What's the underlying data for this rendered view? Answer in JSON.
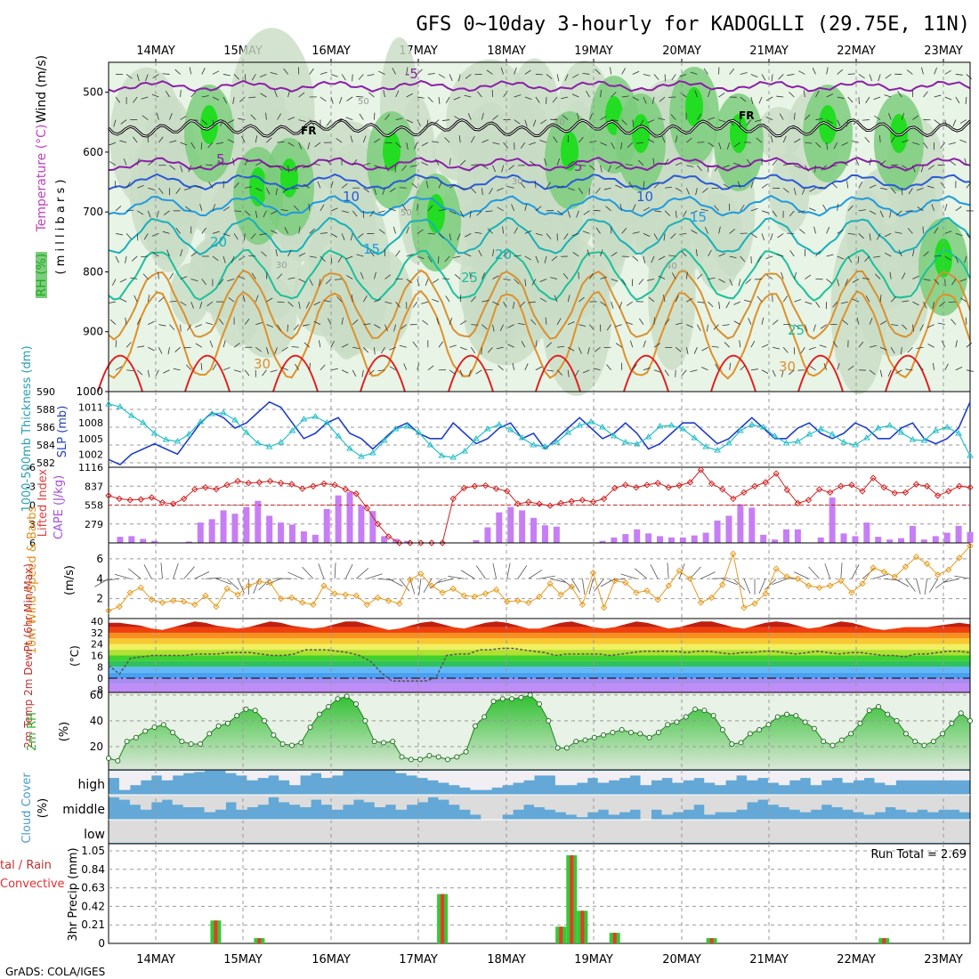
{
  "chart_data": {
    "type": "meteogram",
    "title": "GFS 0~10day 3-hourly for KADOGLLI (29.75E, 11N)",
    "footer": "GrADS: COLA/IGES",
    "dates": [
      "14MAY",
      "15MAY",
      "16MAY",
      "17MAY",
      "18MAY",
      "19MAY",
      "20MAY",
      "21MAY",
      "22MAY",
      "23MAY"
    ],
    "panels": {
      "upper_air": {
        "ylabel_parts": [
          "RH (%)",
          "Temperature (°C)",
          "Wind (m/s)"
        ],
        "yunits": "( m i l l i b a r s )",
        "yticks": [
          "500",
          "600",
          "700",
          "800",
          "900",
          "1000"
        ],
        "contour_labels": [
          "-5",
          "5",
          "10",
          "15",
          "20",
          "25",
          "30",
          "5",
          "10",
          "15",
          "20",
          "25",
          "30",
          "FR",
          "FR",
          "50",
          "70",
          "30",
          "50",
          "40",
          "30"
        ],
        "rh_levels": [
          30,
          50,
          70,
          90
        ],
        "colors": {
          "rh30": "#e8f4e6",
          "rh50": "#c8dcc4",
          "rh70": "#7ccd7c",
          "rh90": "#22dd22",
          "rh_dark": "#b4c4b0"
        }
      },
      "thickness_slp": {
        "ylabel": "1000-500mb Thickness (dm)",
        "ylabel2": "SLP (mb)",
        "yticks": [
          "590",
          "588",
          "586",
          "584",
          "582"
        ],
        "yticks2": [
          "1011",
          "1008",
          "1005",
          "1002"
        ],
        "slp": [
          1001,
          1000,
          1002,
          1003,
          1004,
          1003,
          1002,
          1005,
          1008,
          1010,
          1009,
          1007,
          1008,
          1010,
          1012,
          1011,
          1008,
          1005,
          1006,
          1008,
          1009,
          1006,
          1005,
          1003,
          1005,
          1007,
          1008,
          1006,
          1005,
          1005,
          1008,
          1006,
          1004,
          1005,
          1007,
          1008,
          1005,
          1006,
          1003,
          1005,
          1007,
          1009,
          1007,
          1005,
          1006,
          1008,
          1006,
          1003,
          1004,
          1006,
          1008,
          1008,
          1006,
          1004,
          1005,
          1007,
          1009,
          1007,
          1005,
          1005,
          1007,
          1008,
          1006,
          1005,
          1006,
          1008,
          1007,
          1005,
          1005,
          1007,
          1008,
          1005,
          1004,
          1005,
          1007,
          1012
        ],
        "thickness": [
          588.6,
          588.3,
          587.3,
          586.5,
          585.3,
          584.6,
          584.4,
          585.2,
          586.6,
          587.5,
          587.6,
          586.8,
          585.4,
          584.2,
          583.8,
          584.3,
          585.6,
          586.9,
          587.2,
          586.5,
          585.0,
          583.6,
          582.7,
          583.1,
          584.5,
          585.8,
          586.1,
          585.4,
          584.0,
          582.8,
          582.6,
          583.3,
          584.7,
          585.8,
          586.3,
          585.7,
          584.8,
          584.0,
          583.8,
          584.3,
          585.4,
          586.2,
          586.6,
          586.0,
          585.0,
          584.3,
          584.1,
          584.9,
          586.1,
          586.2,
          585.8,
          584.8,
          583.8,
          583.4,
          584.2,
          585.6,
          586.3,
          586.0,
          585.0,
          584.2,
          584.4,
          585.2,
          585.8,
          585.2,
          584.3,
          584.0,
          584.8,
          585.9,
          586.2,
          585.4,
          584.6,
          584.5,
          585.6,
          586.0,
          585.3,
          582.8
        ]
      },
      "li_cape": {
        "ylabel": "Lifted Index",
        "ylabel2": "CAPE (J/kg)",
        "yticks": [
          "-6",
          "-3",
          "0",
          "3",
          "6"
        ],
        "yticks2": [
          "1116",
          "837",
          "558",
          "279"
        ],
        "cape": [
          0,
          90,
          100,
          60,
          30,
          0,
          0,
          20,
          300,
          350,
          480,
          430,
          530,
          620,
          400,
          300,
          270,
          170,
          120,
          500,
          700,
          750,
          550,
          470,
          100,
          60,
          30,
          0,
          0,
          0,
          0,
          0,
          40,
          230,
          450,
          530,
          480,
          370,
          260,
          240,
          0,
          0,
          0,
          30,
          80,
          130,
          200,
          140,
          100,
          80,
          80,
          110,
          150,
          330,
          400,
          570,
          520,
          120,
          50,
          200,
          200,
          0,
          80,
          670,
          140,
          100,
          300,
          90,
          50,
          70,
          250,
          50,
          100,
          150,
          250,
          160
        ],
        "li": [
          -1.5,
          -1.0,
          -0.8,
          -0.9,
          -1.2,
          -0.4,
          -0.2,
          -1.0,
          -2.5,
          -2.8,
          -2.5,
          -3.2,
          -3.8,
          -3.5,
          -3.6,
          -3.8,
          -3.5,
          -3.3,
          -2.6,
          -3.0,
          -3.4,
          -3.2,
          -2.5,
          -1.8,
          0.5,
          3.0,
          5.0,
          6.0,
          6.0,
          6.0,
          6.0,
          6.0,
          -1.0,
          -2.7,
          -3.0,
          -3.1,
          -2.6,
          -2.2,
          -0.2,
          -0.5,
          -0.2,
          0.1,
          -0.3,
          -0.6,
          -0.8,
          -0.5,
          -1.0,
          -2.7,
          -3.2,
          -2.8,
          -3.2,
          -3.5,
          -2.8,
          -3.1,
          -3.6,
          -5.6,
          -3.4,
          -2.5,
          -1.0,
          -2.0,
          -3.0,
          -3.6,
          -5.0,
          -2.4,
          -0.3,
          -0.8,
          -2.5,
          -2.0,
          -3.0,
          -3.2,
          -2.2,
          -4.3,
          -2.8,
          -1.9,
          -2.0,
          -3.3,
          -3.0,
          -1.5,
          -2.2,
          -3.0,
          -2.8
        ],
        "colors": {
          "cape": "#c77ef5",
          "li": "#d22020"
        }
      },
      "wind10m": {
        "ylabel": "10m Wind Speed & Barbs",
        "yunits": "(m/s)",
        "yticks": [
          "6",
          "4",
          "2"
        ],
        "speed": [
          0.8,
          1.2,
          2.6,
          3.1,
          1.9,
          1.6,
          1.8,
          1.7,
          1.4,
          2.3,
          1.2,
          3.0,
          2.4,
          3.3,
          3.7,
          3.6,
          2.0,
          2.1,
          1.6,
          1.4,
          3.3,
          2.5,
          2.4,
          2.3,
          1.4,
          2.1,
          1.8,
          1.5,
          3.9,
          4.5,
          3.3,
          2.6,
          3.0,
          2.3,
          2.2,
          2.5,
          2.9,
          1.7,
          1.8,
          1.6,
          2.2,
          3.5,
          2.4,
          3.2,
          1.4,
          4.6,
          1.1,
          3.8,
          3.6,
          2.6,
          2.8,
          1.9,
          3.3,
          4.8,
          4.0,
          1.6,
          2.1,
          3.4,
          6.5,
          1.1,
          1.5,
          2.5,
          5.0,
          4.2,
          4.0,
          3.3,
          3.1,
          3.3,
          3.8,
          2.6,
          3.5,
          5.1,
          4.7,
          4.2,
          5.2,
          6.2,
          5.5,
          4.4,
          4.9,
          6.1,
          7.3
        ],
        "color": "#e69a1e"
      },
      "temp2m": {
        "ylabel": "2m Temp 2m DewPt (6hr Min/Max)",
        "yunits": "(°C)",
        "yticks": [
          "40",
          "32",
          "24",
          "16",
          "8",
          "0",
          "-8"
        ],
        "temp_max": [
          39,
          39,
          38,
          37,
          35,
          34,
          36,
          38,
          40,
          39,
          37,
          36,
          35,
          36,
          38,
          40,
          39,
          37,
          36,
          35,
          36,
          38,
          40,
          40,
          38,
          36,
          34,
          35,
          37,
          39,
          40,
          38,
          36,
          35,
          37,
          39,
          40,
          39,
          37,
          35,
          35,
          37,
          39,
          40,
          38,
          36,
          35,
          36,
          38,
          40,
          39,
          37,
          35,
          36,
          38,
          40,
          40,
          38,
          36,
          35,
          37,
          39,
          40,
          39,
          37,
          35,
          36,
          38,
          40,
          39,
          37,
          35,
          34,
          35,
          36,
          36,
          36,
          37,
          38,
          39,
          38
        ],
        "dewpoint": [
          9,
          3,
          14,
          15,
          16,
          16,
          16,
          16,
          17,
          17,
          17,
          18,
          18,
          18,
          17,
          16,
          16,
          17,
          20,
          20,
          20,
          19,
          18,
          16,
          12,
          4,
          -2,
          -2,
          -2,
          -2,
          0,
          16,
          17,
          17,
          20,
          20,
          21,
          21,
          20,
          19,
          18,
          16,
          17,
          17,
          17,
          17,
          16,
          17,
          18,
          19,
          19,
          19,
          19,
          18,
          19,
          19,
          18,
          17,
          18,
          18,
          19,
          19,
          18,
          17,
          18,
          19,
          18,
          17,
          18,
          18,
          17,
          16,
          16,
          15,
          17,
          17,
          18,
          19,
          19,
          18
        ]
      },
      "rh2m": {
        "ylabel": "2m RH",
        "yunits": "(%)",
        "yticks": [
          "60",
          "40",
          "20"
        ],
        "values": [
          11,
          9,
          24,
          27,
          32,
          35,
          37,
          31,
          24,
          22,
          22,
          30,
          36,
          38,
          44,
          49,
          48,
          40,
          29,
          22,
          21,
          23,
          35,
          45,
          51,
          57,
          59,
          53,
          40,
          24,
          23,
          24,
          12,
          10,
          10,
          13,
          12,
          10,
          12,
          16,
          36,
          43,
          55,
          57,
          57,
          58,
          60,
          53,
          40,
          19,
          19,
          24,
          25,
          27,
          29,
          31,
          33,
          31,
          30,
          27,
          31,
          37,
          39,
          43,
          49,
          48,
          44,
          33,
          22,
          23,
          30,
          33,
          37,
          43,
          45,
          44,
          39,
          34,
          24,
          21,
          25,
          30,
          38,
          48,
          51,
          45,
          40,
          30,
          24,
          21,
          24,
          30,
          38,
          46,
          40
        ]
      },
      "cloud": {
        "ylabel": "Cloud Cover",
        "yunits": "(%)",
        "rows": [
          "high",
          "middle",
          "low"
        ],
        "high": [
          70,
          20,
          40,
          60,
          80,
          60,
          80,
          90,
          95,
          100,
          100,
          90,
          80,
          60,
          70,
          80,
          60,
          40,
          80,
          90,
          70,
          80,
          100,
          100,
          100,
          100,
          100,
          90,
          80,
          70,
          60,
          50,
          40,
          30,
          20,
          20,
          30,
          40,
          50,
          60,
          80,
          80,
          40,
          40,
          50,
          70,
          50,
          60,
          70,
          80,
          40,
          60,
          70,
          50,
          60,
          70,
          50,
          40,
          60,
          80,
          60,
          70,
          50,
          40,
          60,
          70,
          40,
          60,
          70,
          50,
          60,
          70,
          50,
          40,
          60,
          60,
          60,
          60,
          60,
          60,
          60
        ],
        "middle": [
          90,
          80,
          60,
          40,
          70,
          80,
          60,
          50,
          50,
          30,
          40,
          70,
          40,
          50,
          60,
          90,
          70,
          60,
          50,
          80,
          60,
          40,
          60,
          80,
          70,
          50,
          60,
          40,
          60,
          70,
          90,
          80,
          60,
          40,
          20,
          0,
          0,
          20,
          40,
          60,
          50,
          40,
          30,
          20,
          10,
          30,
          40,
          20,
          30,
          40,
          0,
          40,
          20,
          30,
          40,
          60,
          20,
          30,
          30,
          40,
          70,
          80,
          60,
          50,
          40,
          30,
          40,
          60,
          50,
          40,
          30,
          20,
          30,
          50,
          40,
          30,
          40,
          30,
          40,
          40,
          30
        ],
        "low": [
          0,
          0,
          0,
          0,
          0,
          0,
          0,
          0,
          0,
          0,
          0,
          0,
          0,
          0,
          0,
          0,
          0,
          0,
          0,
          0,
          0,
          0,
          0,
          0,
          0,
          0,
          0,
          0,
          0,
          0,
          0,
          0,
          0,
          0,
          0,
          0,
          0,
          0,
          0,
          0,
          0,
          0,
          0,
          0,
          0,
          0,
          0,
          0,
          0,
          0,
          0,
          0,
          0,
          0,
          0,
          0,
          0,
          0,
          0,
          0,
          0,
          0,
          0,
          0,
          0,
          0,
          0,
          0,
          0,
          0,
          0,
          0,
          0,
          0,
          0,
          0,
          0,
          0,
          0,
          0,
          0
        ],
        "colors": {
          "fill": "#63a8d6",
          "clear": "#f2eff4",
          "gap": "#dcdcdc"
        }
      },
      "precip": {
        "ylabel": "3hr Precip (mm)",
        "side_label_top": "tal / Rain",
        "side_label_bottom": "Convective",
        "run_total_label": "Run Total = 2.69",
        "yticks": [
          "1.05",
          "0.84",
          "0.63",
          "0.42",
          "0.21",
          "0"
        ],
        "events": [
          {
            "x": 9.95,
            "total": 0.26
          },
          {
            "x": 14.0,
            "total": 0.06
          },
          {
            "x": 31.0,
            "total": 0.56
          },
          {
            "x": 42.0,
            "total": 0.19
          },
          {
            "x": 43.0,
            "total": 1.0
          },
          {
            "x": 44.0,
            "total": 0.37
          },
          {
            "x": 47.0,
            "total": 0.12
          },
          {
            "x": 56.0,
            "total": 0.06
          },
          {
            "x": 72.0,
            "total": 0.06
          }
        ],
        "colors": {
          "total": "#35c935",
          "conv": "#e8392a"
        }
      }
    }
  }
}
